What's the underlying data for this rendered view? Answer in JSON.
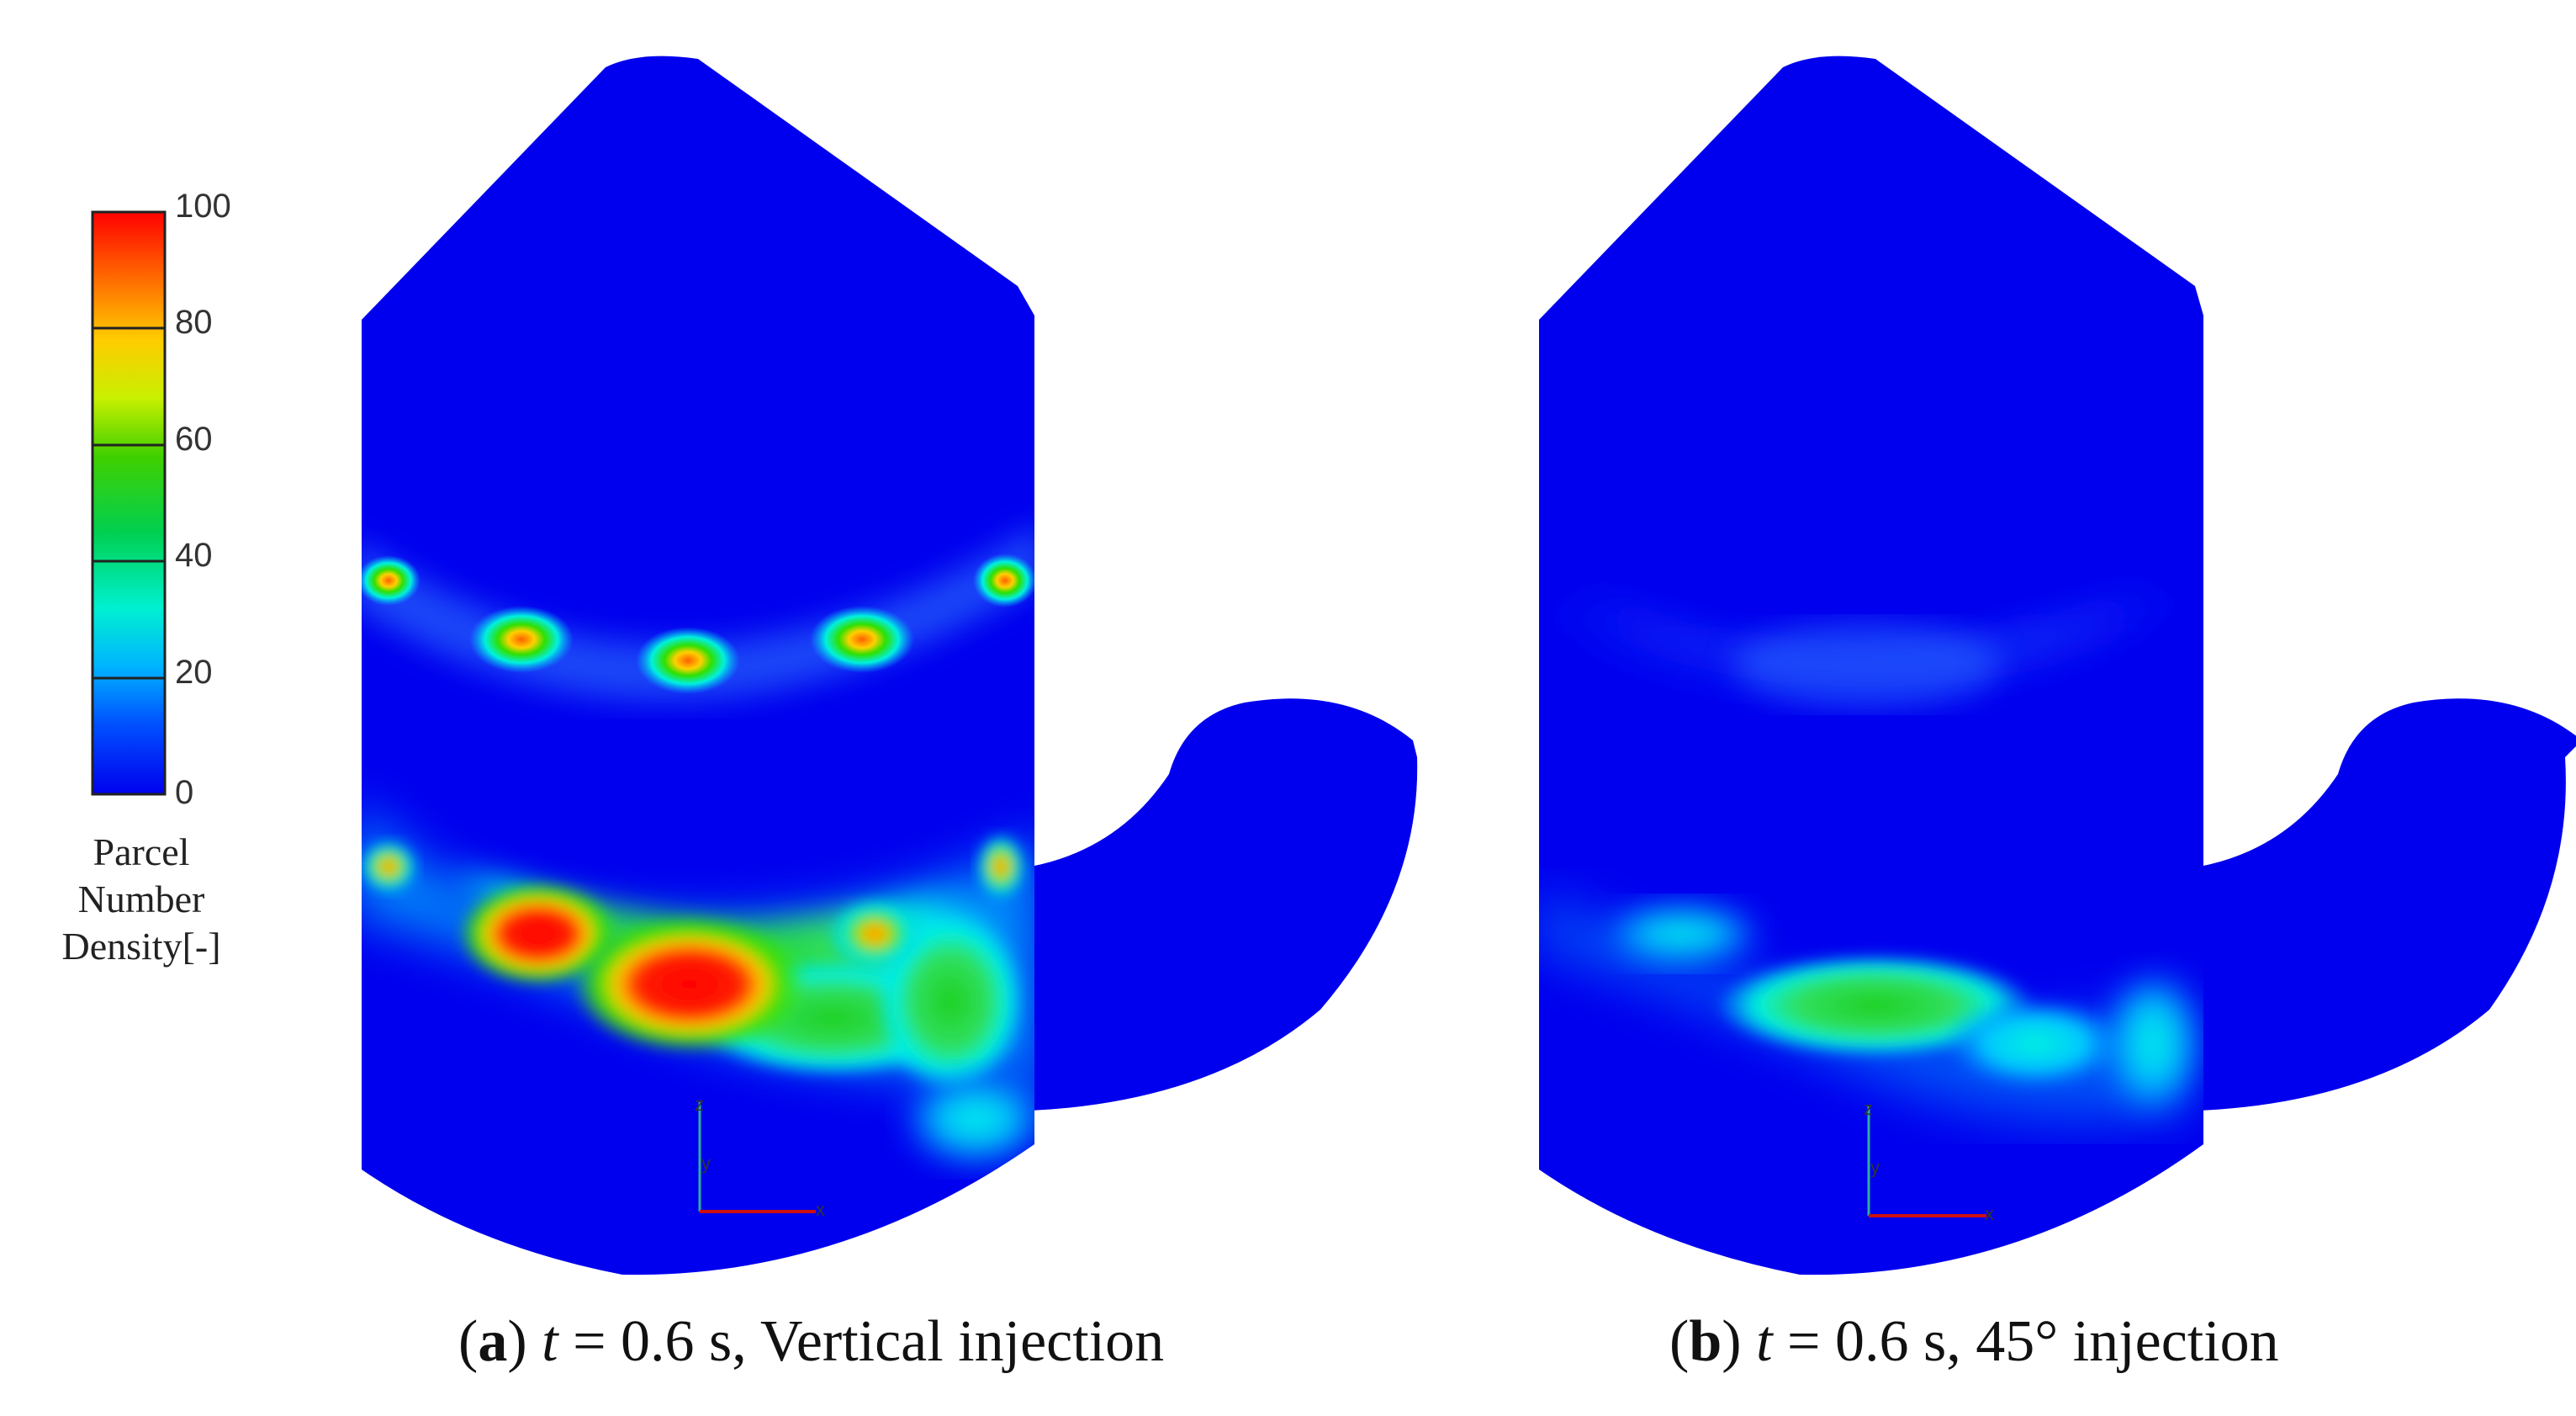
{
  "legend": {
    "title_lines": [
      "Parcel",
      "Number",
      "Density[-]"
    ],
    "ticks": [
      "100",
      "80",
      "60",
      "40",
      "20",
      "0"
    ],
    "colors": {
      "low": "#0000ff",
      "mid_low": "#00ffff",
      "mid": "#00cc00",
      "mid_high": "#ffff00",
      "high": "#ff0000"
    }
  },
  "panels": [
    {
      "label": "a",
      "time_var": "t",
      "caption_rest": " = 0.6 s, Vertical injection",
      "axis_letters": [
        "z",
        "y",
        "x"
      ]
    },
    {
      "label": "b",
      "time_var": "t",
      "caption_rest": " = 0.6 s, 45° injection",
      "axis_letters": [
        "z",
        "y",
        "x"
      ]
    }
  ]
}
